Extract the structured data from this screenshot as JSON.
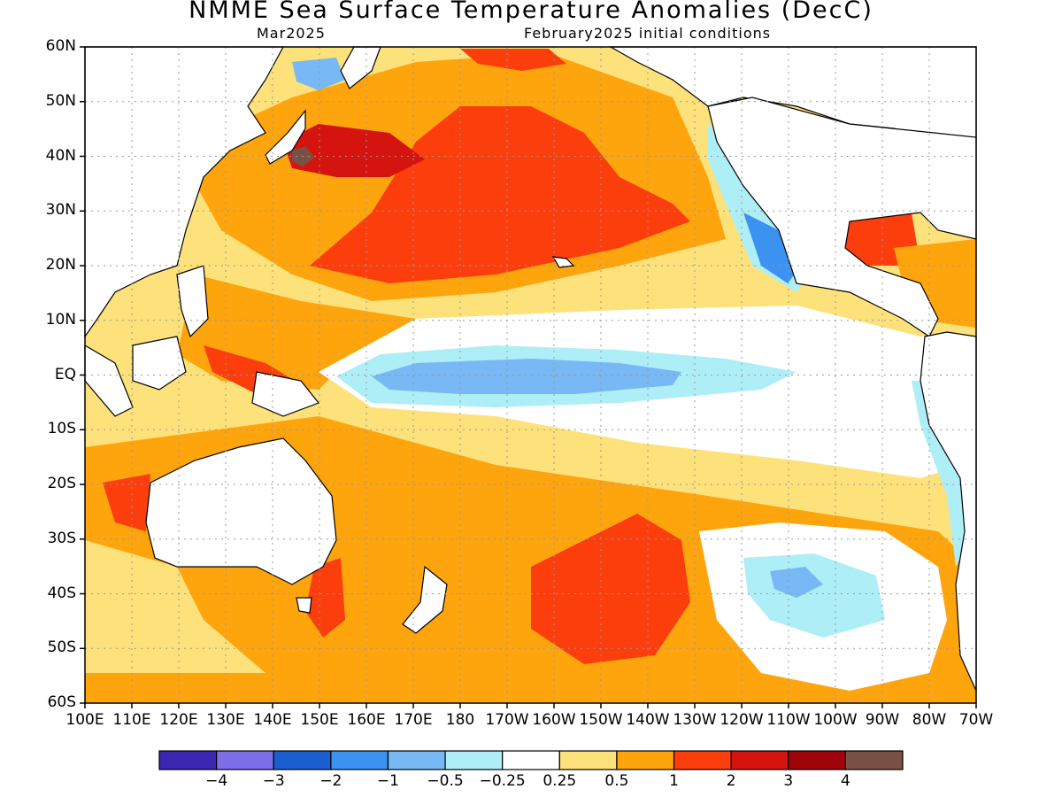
{
  "title": "NMME Sea Surface Temperature Anomalies (DecC)",
  "subtitle_left": "Mar2025",
  "subtitle_right": "February2025 initial conditions",
  "lat_labels": [
    "60N",
    "50N",
    "40N",
    "30N",
    "20N",
    "10N",
    "EQ",
    "10S",
    "20S",
    "30S",
    "40S",
    "50S",
    "60S"
  ],
  "lon_labels": [
    "100E",
    "110E",
    "120E",
    "130E",
    "140E",
    "150E",
    "160E",
    "170E",
    "180",
    "170W",
    "160W",
    "150W",
    "140W",
    "130W",
    "120W",
    "110W",
    "100W",
    "90W",
    "80W",
    "70W"
  ],
  "colorbar": {
    "colors": [
      "#3a26b0",
      "#7c6ee8",
      "#1a5fcf",
      "#3c92f0",
      "#78b8f4",
      "#aeeef6",
      "#ffffff",
      "#fde17a",
      "#fea40d",
      "#fc3e0d",
      "#d6140f",
      "#a0040a",
      "#7a5044"
    ],
    "labels": [
      "−4",
      "−3",
      "−2",
      "−1",
      "−0.5",
      "−0.25",
      "0.25",
      "0.5",
      "1",
      "2",
      "3",
      "4"
    ]
  },
  "anomaly_colors": {
    "light_yellow": "#fde17a",
    "orange": "#fea40d",
    "red_orange": "#fc3e0d",
    "red": "#d6140f",
    "dark_red": "#a0040a",
    "brown": "#7a5044",
    "pale_cyan": "#aeeef6",
    "light_blue": "#78b8f4",
    "blue": "#3c92f0"
  }
}
